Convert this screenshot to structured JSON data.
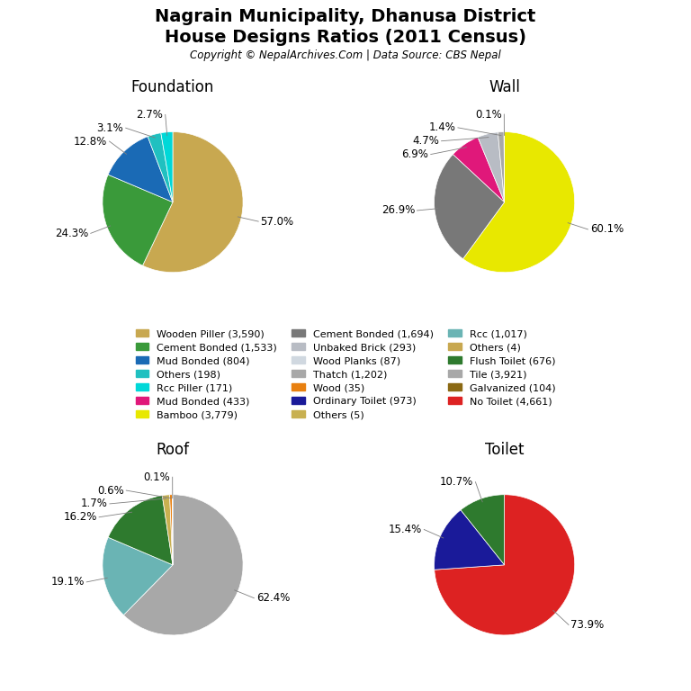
{
  "title": "Nagrain Municipality, Dhanusa District",
  "subtitle": "House Designs Ratios (2011 Census)",
  "annotations": [
    "Copyright © NepalArchives.Com | Data Source: CBS Nepal"
  ],
  "legend": "center",
  "legend_entries": [
    {
      "name": "Wooden Piller (3,590)",
      "color": "#c8a850"
    },
    {
      "name": "Cement Bonded (1,533)",
      "color": "#3a9a3a"
    },
    {
      "name": "Mud Bonded (804)",
      "color": "#1a6ab5"
    },
    {
      "name": "Others (198)",
      "color": "#20c0c0"
    },
    {
      "name": "Rcc Piller (171)",
      "color": "#00d8d8"
    },
    {
      "name": "Mud Bonded (433)",
      "color": "#e0187a"
    },
    {
      "name": "Bamboo (3,779)",
      "color": "#e8e800"
    },
    {
      "name": "Cement Bonded (1,694)",
      "color": "#787878"
    },
    {
      "name": "Unbaked Brick (293)",
      "color": "#b8bcc4"
    },
    {
      "name": "Wood Planks (87)",
      "color": "#d0d8e0"
    },
    {
      "name": "Thatch (1,202)",
      "color": "#a8a8a8"
    },
    {
      "name": "Wood (35)",
      "color": "#e88010"
    },
    {
      "name": "Ordinary Toilet (973)",
      "color": "#1a1a99"
    },
    {
      "name": "Others (5)",
      "color": "#c8b050"
    },
    {
      "name": "Rcc (1,017)",
      "color": "#6ab4b4"
    },
    {
      "name": "Others (4)",
      "color": "#c8a850"
    },
    {
      "name": "Flush Toilet (676)",
      "color": "#2e7a2e"
    },
    {
      "name": "Tile (3,921)",
      "color": "#a8a8a8"
    },
    {
      "name": "Galvanized (104)",
      "color": "#8b6914"
    },
    {
      "name": "No Toilet (4,661)",
      "color": "#dd2222"
    }
  ],
  "chart_data": [
    {
      "type": "pie",
      "title": "Foundation",
      "values": [
        57.0,
        24.3,
        12.8,
        3.1,
        2.7
      ],
      "value_labels": [
        "57.0%",
        "24.3%",
        "12.8%",
        "3.1%",
        "2.7%"
      ],
      "colors": [
        "#c8a850",
        "#3a9a3a",
        "#1a6ab5",
        "#20c0c0",
        "#00d8d8"
      ],
      "data_labels": true
    },
    {
      "type": "pie",
      "title": "Wall",
      "values": [
        60.1,
        26.9,
        6.9,
        4.7,
        1.4,
        0.1
      ],
      "value_labels": [
        "60.1%",
        "26.9%",
        "6.9%",
        "4.7%",
        "1.4%",
        "0.1%"
      ],
      "colors": [
        "#e8e800",
        "#787878",
        "#e0187a",
        "#b8bcc4",
        "#a8a8a8",
        "#8b6914"
      ],
      "data_labels": true
    },
    {
      "type": "pie",
      "title": "Roof",
      "values": [
        62.4,
        19.1,
        16.2,
        1.7,
        0.6,
        0.1
      ],
      "value_labels": [
        "62.4%",
        "19.1%",
        "16.2%",
        "1.7%",
        "0.6%",
        "0.1%"
      ],
      "colors": [
        "#a8a8a8",
        "#6ab4b4",
        "#2e7a2e",
        "#c8b050",
        "#e88010",
        "#d0d8e0"
      ],
      "data_labels": true
    },
    {
      "type": "pie",
      "title": "Toilet",
      "values": [
        73.9,
        15.4,
        10.7
      ],
      "value_labels": [
        "73.9%",
        "15.4%",
        "10.7%"
      ],
      "colors": [
        "#dd2222",
        "#1a1a99",
        "#2e7a2e"
      ],
      "data_labels": true
    }
  ]
}
